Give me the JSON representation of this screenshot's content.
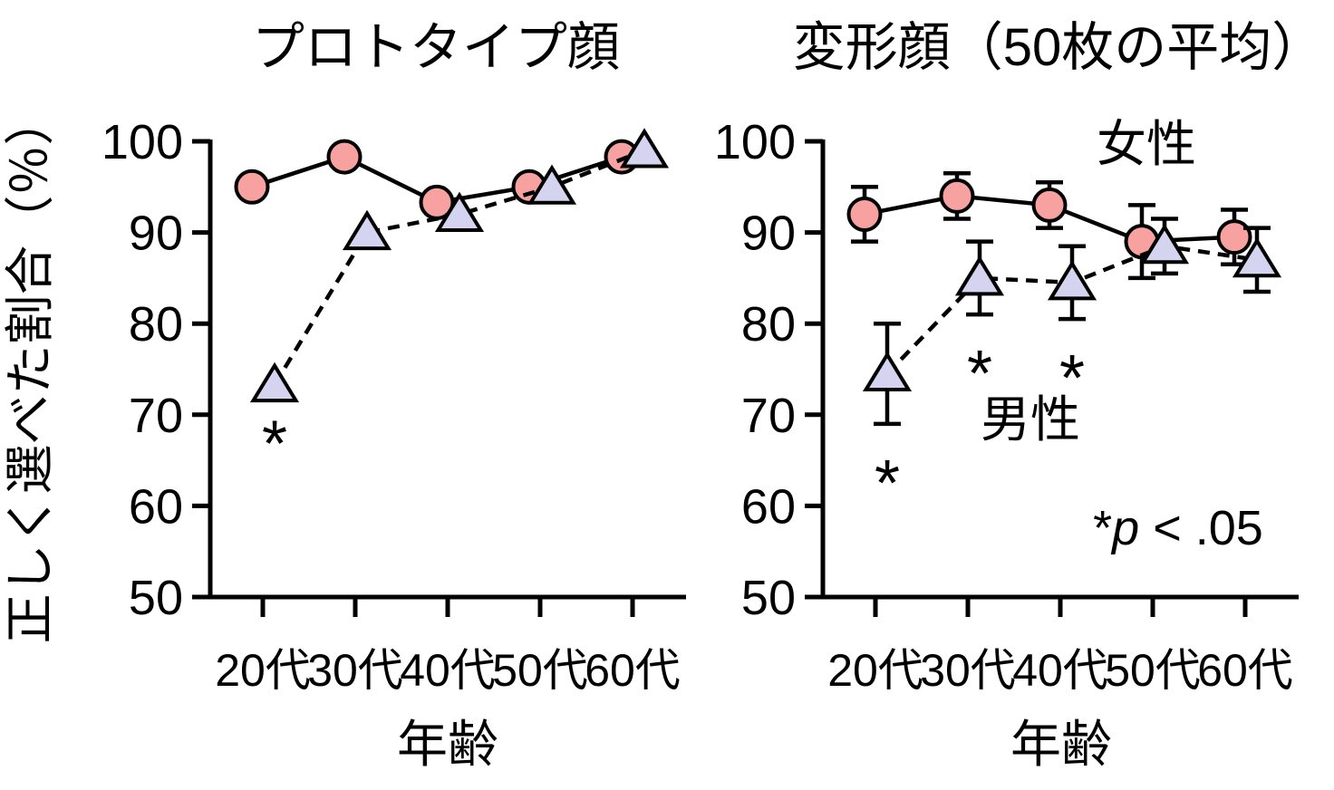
{
  "figure": {
    "y_axis_label": "正しく選べた割合（％）",
    "x_axis_label": "年齢",
    "sig_symbol": "*",
    "p_note": {
      "star": "*",
      "p": "p",
      "rest": " < .05"
    },
    "colors": {
      "female_fill": "#F8A1A1",
      "male_fill": "#D4D4F0",
      "line": "#000000",
      "background": "#FFFFFF"
    }
  },
  "chart_data": [
    {
      "type": "line",
      "title": "プロトタイプ顔",
      "xlabel": "年齢",
      "ylabel": "正しく選べた割合（％）",
      "categories": [
        "20代",
        "30代",
        "40代",
        "50代",
        "60代"
      ],
      "ylim": [
        50,
        100
      ],
      "yticks": [
        50,
        60,
        70,
        80,
        90,
        100
      ],
      "grid": false,
      "legend_position": "none",
      "series": [
        {
          "name": "女性",
          "marker": "circle",
          "line_style": "solid",
          "values": [
            95,
            98.3,
            93.3,
            95,
            98.3
          ],
          "errors": null,
          "sig": [
            false,
            false,
            false,
            false,
            false
          ]
        },
        {
          "name": "男性",
          "marker": "triangle",
          "line_style": "dashed",
          "values": [
            73.3,
            90,
            92,
            95,
            99
          ],
          "errors": null,
          "sig": [
            true,
            false,
            false,
            false,
            false
          ]
        }
      ]
    },
    {
      "type": "line",
      "title": "変形顔（50枚の平均）",
      "xlabel": "年齢",
      "ylabel": "正しく選べた割合（％）",
      "categories": [
        "20代",
        "30代",
        "40代",
        "50代",
        "60代"
      ],
      "ylim": [
        50,
        100
      ],
      "yticks": [
        50,
        60,
        70,
        80,
        90,
        100
      ],
      "grid": false,
      "legend_position": "inline-text",
      "labels": {
        "female": "女性",
        "male": "男性"
      },
      "note": "*p < .05",
      "series": [
        {
          "name": "女性",
          "marker": "circle",
          "line_style": "solid",
          "values": [
            92,
            94,
            93,
            89,
            89.5
          ],
          "errors": [
            3,
            2.5,
            2.5,
            4,
            3
          ],
          "sig": [
            false,
            false,
            false,
            false,
            false
          ]
        },
        {
          "name": "男性",
          "marker": "triangle",
          "line_style": "dashed",
          "values": [
            74.5,
            85,
            84.5,
            88.5,
            87
          ],
          "errors": [
            5.5,
            4,
            4,
            3,
            3.5
          ],
          "sig": [
            true,
            true,
            true,
            false,
            false
          ]
        }
      ]
    }
  ]
}
